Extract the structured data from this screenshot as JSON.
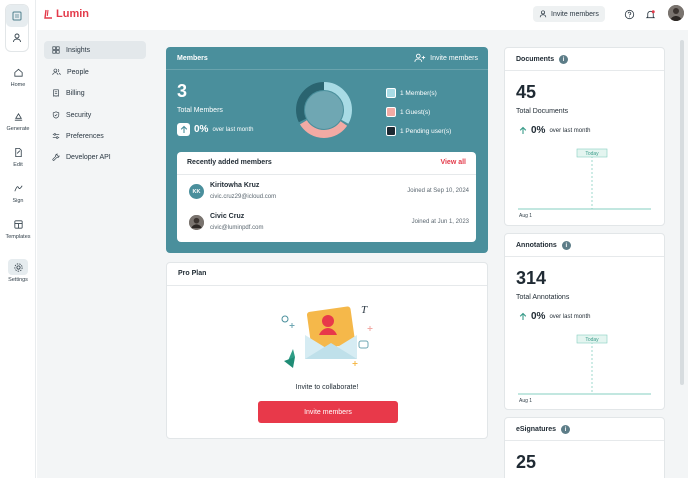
{
  "header": {
    "logo_text": "Lumin",
    "invite_label": "Invite members"
  },
  "rail": {
    "items": [
      {
        "label": "Home"
      },
      {
        "label": "Generate"
      },
      {
        "label": "Edit"
      },
      {
        "label": "Sign"
      },
      {
        "label": "Templates"
      },
      {
        "label": "Settings"
      }
    ]
  },
  "sidebar": {
    "items": [
      {
        "label": "Insights"
      },
      {
        "label": "People"
      },
      {
        "label": "Billing"
      },
      {
        "label": "Security"
      },
      {
        "label": "Preferences"
      },
      {
        "label": "Developer API"
      }
    ]
  },
  "members": {
    "title": "Members",
    "invite_label": "Invite members",
    "total": "3",
    "total_label": "Total Members",
    "trend_value": "0%",
    "trend_text": "over last month",
    "legend": [
      {
        "label": "1 Member(s)",
        "color": "#a8dbe5"
      },
      {
        "label": "1 Guest(s)",
        "color": "#f2aaa4"
      },
      {
        "label": "1 Pending user(s)",
        "color": "#1c2a33"
      }
    ],
    "recent": {
      "title": "Recently added members",
      "view_all": "View all",
      "rows": [
        {
          "initials": "KK",
          "name": "Kiritowha Kruz",
          "email": "civic.cruz29@icloud.com",
          "joined": "Joined at Sep 10, 2024"
        },
        {
          "initials": "",
          "name": "Civic Cruz",
          "email": "civic@luminpdf.com",
          "joined": "Joined at Jun 1, 2023"
        }
      ]
    }
  },
  "pro": {
    "title": "Pro Plan",
    "message": "Invite to collaborate!",
    "button": "Invite members"
  },
  "stats": [
    {
      "title": "Documents",
      "value": "45",
      "label": "Total Documents",
      "trend_value": "0%",
      "trend_text": "over last month",
      "marker": "Today",
      "axis_start": "Aug 1"
    },
    {
      "title": "Annotations",
      "value": "314",
      "label": "Total Annotations",
      "trend_value": "0%",
      "trend_text": "over last month",
      "marker": "Today",
      "axis_start": "Aug 1"
    },
    {
      "title": "eSignatures",
      "value": "25"
    }
  ],
  "colors": {
    "accent": "#e8394a",
    "teal": "#4a8f9c"
  }
}
